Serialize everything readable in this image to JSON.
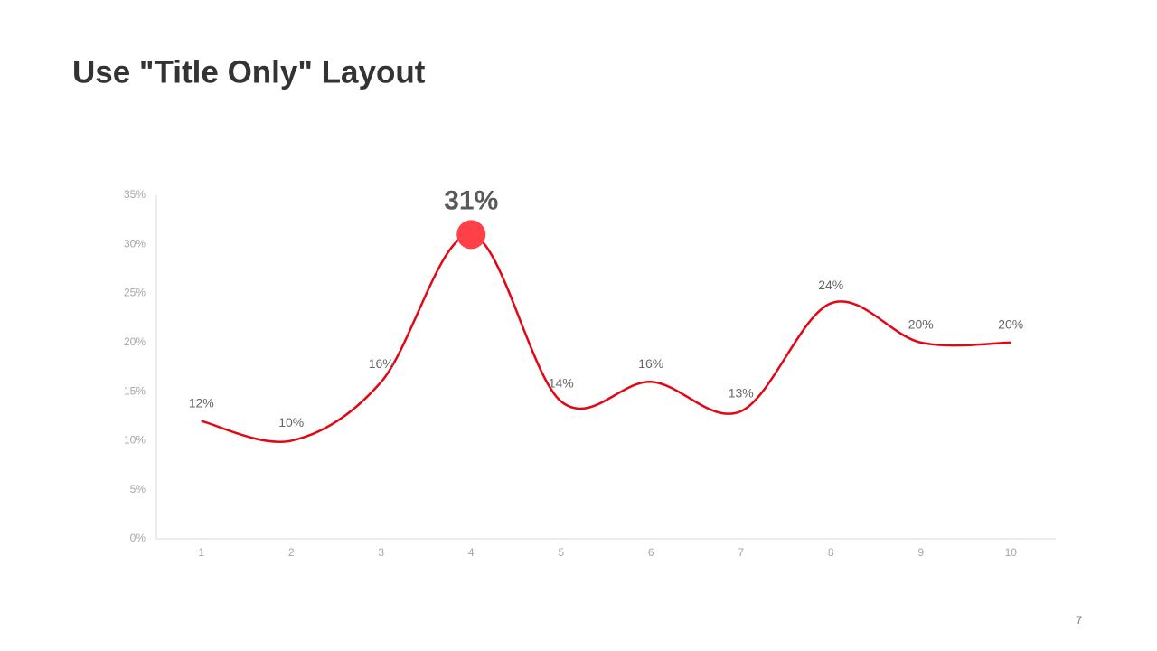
{
  "slide": {
    "title": "Use \"Title Only\" Layout",
    "page_number": "7"
  },
  "chart_data": {
    "type": "line",
    "categories": [
      "1",
      "2",
      "3",
      "4",
      "5",
      "6",
      "7",
      "8",
      "9",
      "10"
    ],
    "values": [
      12,
      10,
      16,
      31,
      14,
      16,
      13,
      24,
      20,
      20
    ],
    "value_labels": [
      "12%",
      "10%",
      "16%",
      "31%",
      "14%",
      "16%",
      "13%",
      "24%",
      "20%",
      "20%"
    ],
    "color": "#e30613",
    "smooth": true,
    "highlight": 3,
    "highlight_color": "#ff4047",
    "ylim": [
      0,
      35
    ],
    "yticks": [
      {
        "value": 0,
        "label": "0%"
      },
      {
        "value": 5,
        "label": "5%"
      },
      {
        "value": 10,
        "label": "10%"
      },
      {
        "value": 15,
        "label": "15%"
      },
      {
        "value": 20,
        "label": "20%"
      },
      {
        "value": 25,
        "label": "25%"
      },
      {
        "value": 30,
        "label": "30%"
      },
      {
        "value": 35,
        "label": "35%"
      }
    ],
    "grid": false
  }
}
